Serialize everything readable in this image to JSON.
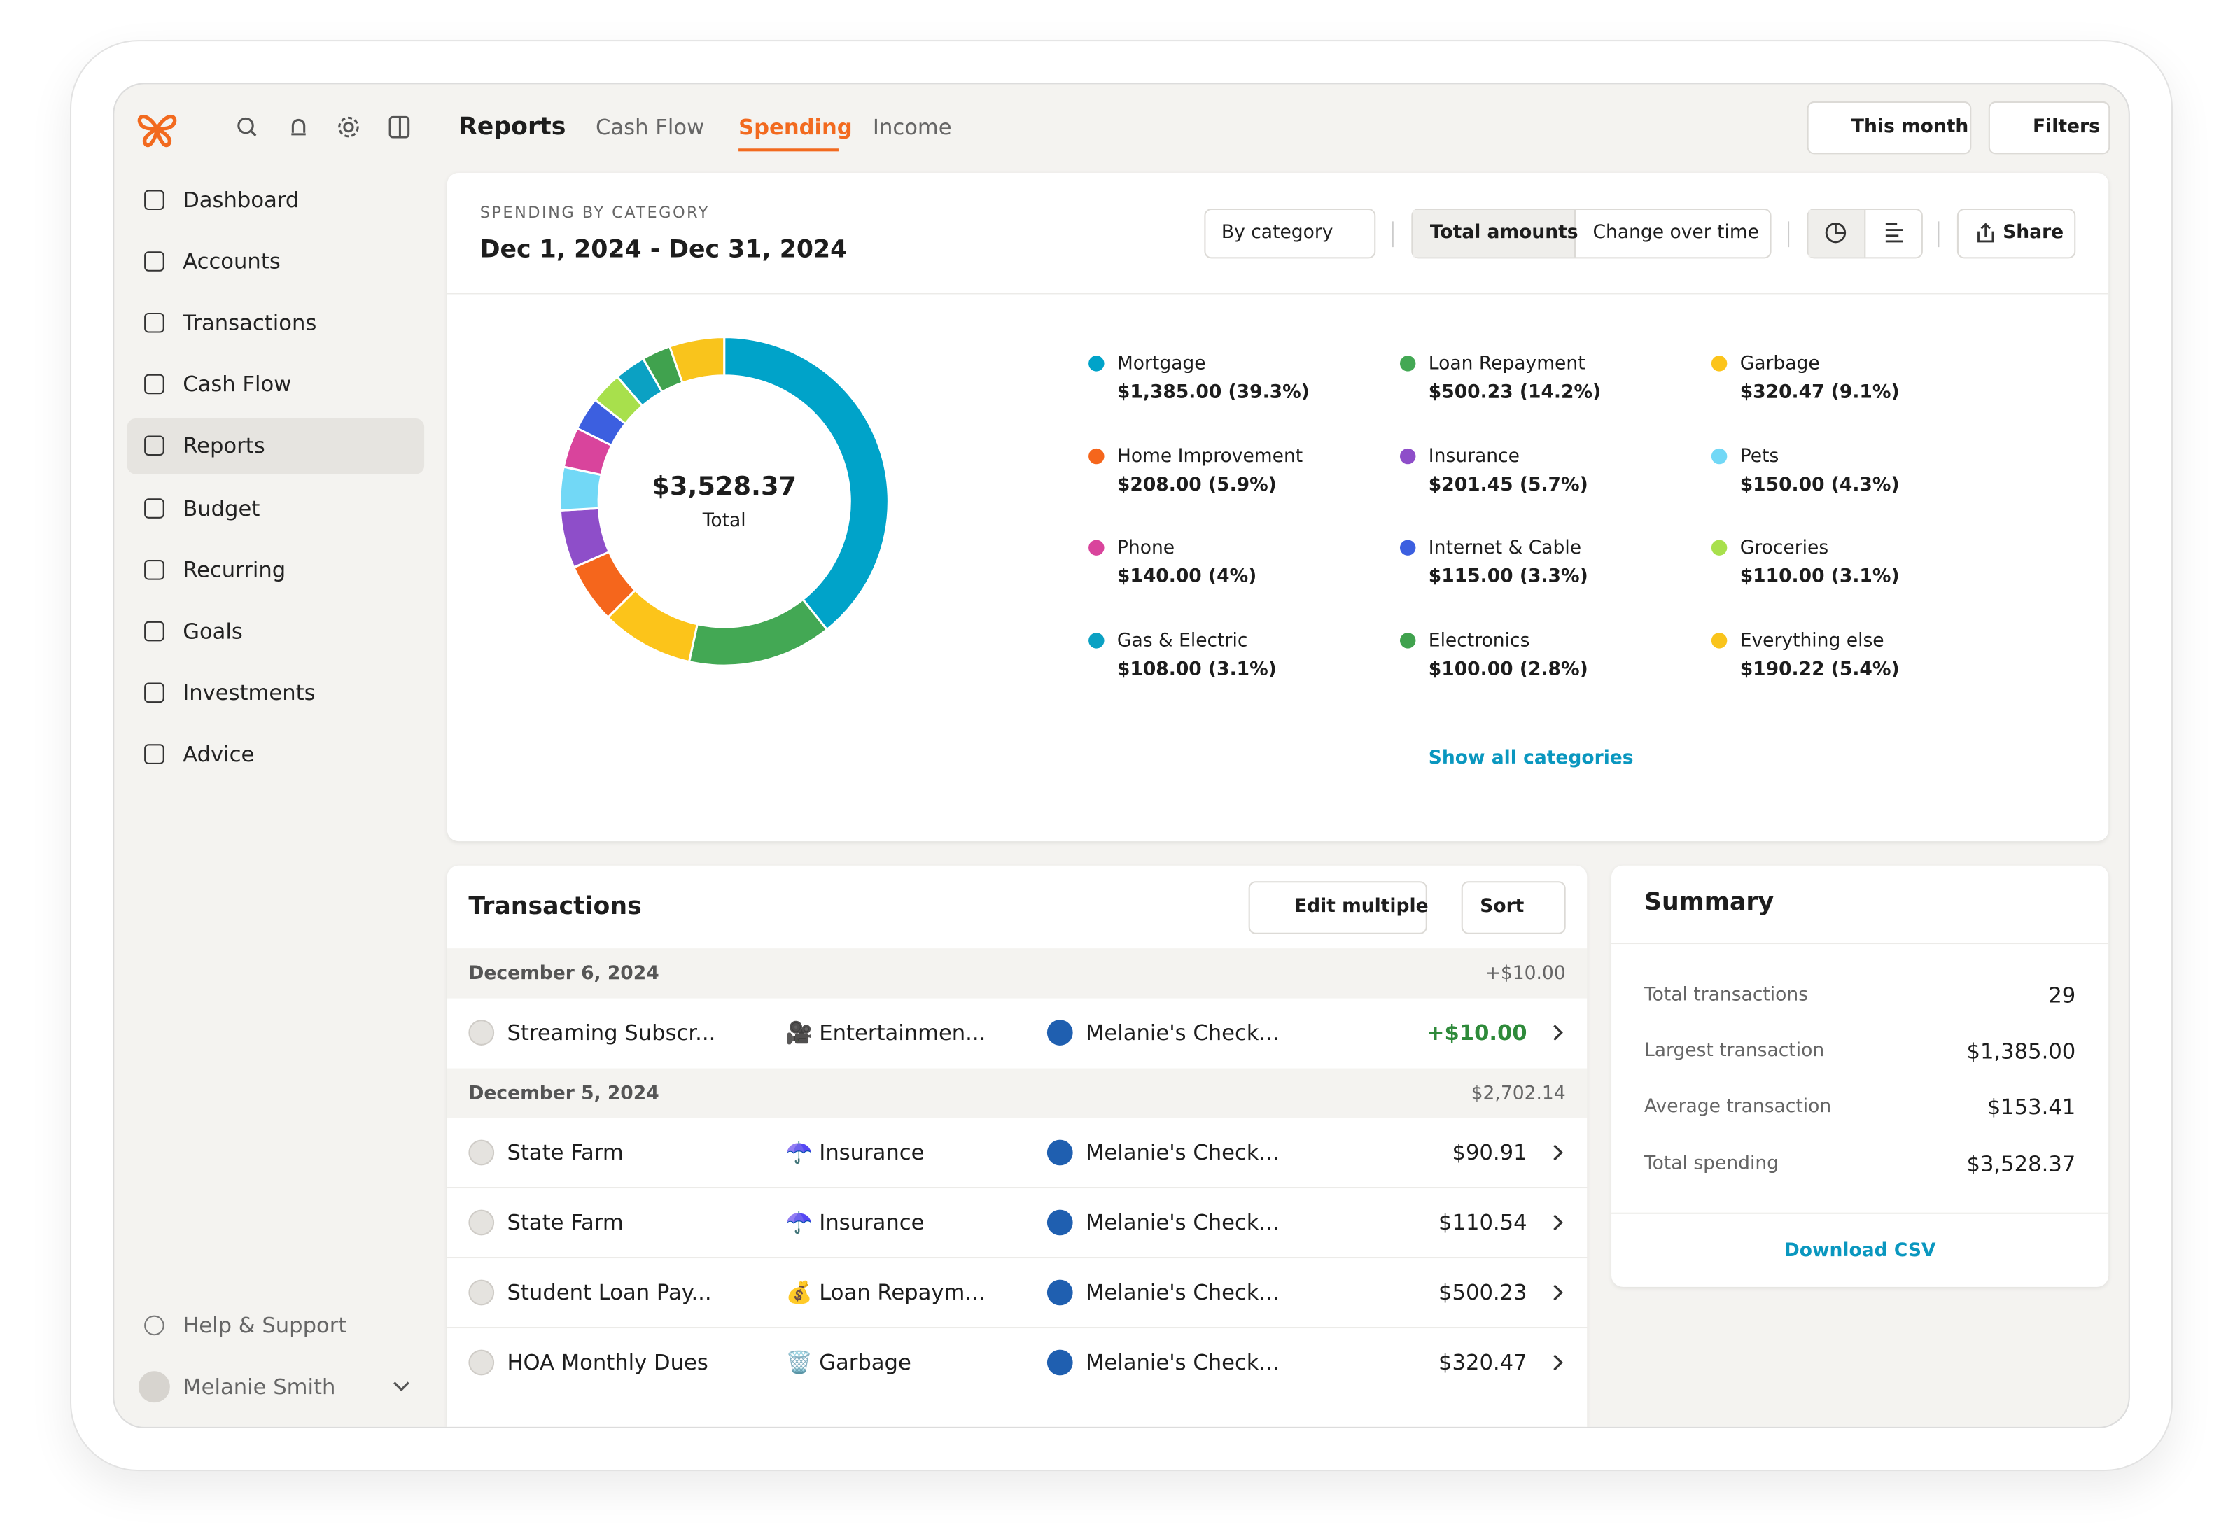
{
  "nav": {
    "items": [
      "Dashboard",
      "Accounts",
      "Transactions",
      "Cash Flow",
      "Reports",
      "Budget",
      "Recurring",
      "Goals",
      "Investments",
      "Advice"
    ],
    "help": "Help & Support",
    "user": "Melanie Smith"
  },
  "header": {
    "title": "Reports",
    "tabs": [
      "Cash Flow",
      "Spending",
      "Income"
    ],
    "date_button": "This month",
    "filters": "Filters"
  },
  "report": {
    "eyebrow": "SPENDING BY CATEGORY",
    "date_range": "Dec 1, 2024 - Dec 31, 2024",
    "group_by": "By category",
    "modes": [
      "Total amounts",
      "Change over time"
    ],
    "share": "Share",
    "show_all": "Show all categories"
  },
  "chart_data": {
    "type": "donut",
    "center_value": "$3,528.37",
    "center_label": "Total",
    "categories": [
      "Mortgage",
      "Loan Repayment",
      "Garbage",
      "Home Improvement",
      "Insurance",
      "Pets",
      "Phone",
      "Internet & Cable",
      "Groceries",
      "Gas & Electric",
      "Electronics",
      "Everything else"
    ],
    "values": [
      1385.0,
      500.23,
      320.47,
      208.0,
      201.45,
      150.0,
      140.0,
      115.0,
      110.0,
      108.0,
      100.0,
      190.22
    ],
    "value_labels": [
      "$1,385.00 (39.3%)",
      "$500.23 (14.2%)",
      "$320.47 (9.1%)",
      "$208.00 (5.9%)",
      "$201.45 (5.7%)",
      "$150.00 (4.3%)",
      "$140.00 (4%)",
      "$115.00 (3.3%)",
      "$110.00 (3.1%)",
      "$108.00 (3.1%)",
      "$100.00 (2.8%)",
      "$190.22 (5.4%)"
    ],
    "colors": [
      "#00a3c9",
      "#43a854",
      "#fcc41a",
      "#f5661c",
      "#8e4ec9",
      "#72d8f6",
      "#d9449c",
      "#3c5fe0",
      "#a8e04c",
      "#0ba1c3",
      "#40a24e",
      "#f9c41c"
    ]
  },
  "transactions": {
    "title": "Transactions",
    "edit": "Edit multiple",
    "sort": "Sort",
    "groups": [
      {
        "date": "December 6, 2024",
        "total": "+$10.00",
        "rows": [
          {
            "merchant": "Streaming Subscr...",
            "category": "🎥 Entertainmen...",
            "account": "Melanie's Check...",
            "amount": "+$10.00"
          }
        ]
      },
      {
        "date": "December 5, 2024",
        "total": "$2,702.14",
        "rows": [
          {
            "merchant": "State Farm",
            "category": "☂️ Insurance",
            "account": "Melanie's Check...",
            "amount": "$90.91"
          },
          {
            "merchant": "State Farm",
            "category": "☂️ Insurance",
            "account": "Melanie's Check...",
            "amount": "$110.54"
          },
          {
            "merchant": "Student Loan Pay...",
            "category": "💰 Loan Repaym...",
            "account": "Melanie's Check...",
            "amount": "$500.23"
          },
          {
            "merchant": "HOA Monthly Dues",
            "category": "🗑️ Garbage",
            "account": "Melanie's Check...",
            "amount": "$320.47"
          }
        ]
      }
    ]
  },
  "summary": {
    "title": "Summary",
    "rows": [
      {
        "label": "Total transactions",
        "value": "29"
      },
      {
        "label": "Largest transaction",
        "value": "$1,385.00"
      },
      {
        "label": "Average transaction",
        "value": "$153.41"
      },
      {
        "label": "Total spending",
        "value": "$3,528.37"
      }
    ],
    "download": "Download CSV"
  }
}
